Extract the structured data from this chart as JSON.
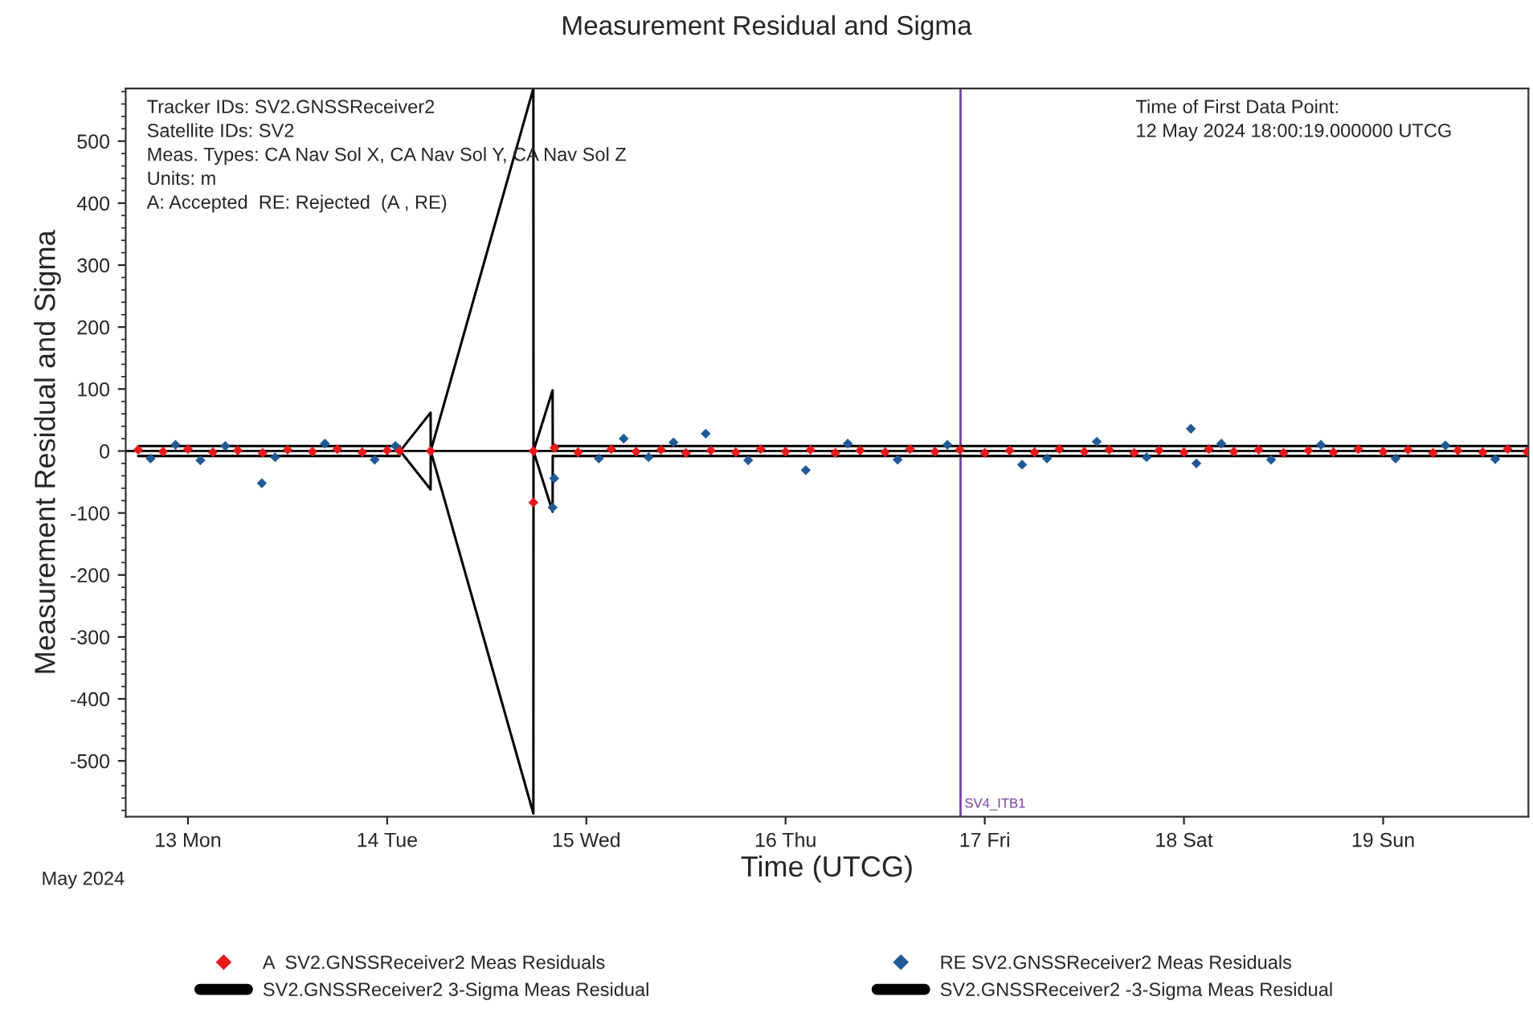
{
  "chart_data": {
    "type": "scatter",
    "title": "Measurement Residual and Sigma",
    "xlabel": "Time (UTCG)",
    "ylabel": "Measurement Residual and Sigma",
    "xlim": [
      "2024-05-12T16:30",
      "2024-05-19T17:30"
    ],
    "xticks": [
      {
        "value": "2024-05-13",
        "label": "13 Mon"
      },
      {
        "value": "2024-05-14",
        "label": "14 Tue"
      },
      {
        "value": "2024-05-15",
        "label": "15 Wed"
      },
      {
        "value": "2024-05-16",
        "label": "16 Thu"
      },
      {
        "value": "2024-05-17",
        "label": "17 Fri"
      },
      {
        "value": "2024-05-18",
        "label": "18 Sat"
      },
      {
        "value": "2024-05-19",
        "label": "19 Sun"
      }
    ],
    "ylim": [
      -590,
      585
    ],
    "yticks": [
      -500,
      -400,
      -300,
      -200,
      -100,
      0,
      100,
      200,
      300,
      400,
      500
    ],
    "grid": false,
    "legend": "bottom",
    "annotations": [
      "Tracker IDs: SV2.GNSSReceiver2\nSatellite IDs: SV2\nMeas. Types: CA Nav Sol X, CA Nav Sol Y, CA Nav Sol Z\nUnits: m\nA: Accepted  RE: Rejected  (A , RE)",
      "Time of First Data Point:\n12 May 2024 18:00:19.000000 UTCG",
      "May 2024"
    ],
    "ref_lines": [
      {
        "axis": "x",
        "value": "2024-05-16T21:05",
        "label": "SV4_ITB1",
        "color": "#7b3fa0"
      },
      {
        "axis": "y",
        "value": 0,
        "color": "#000000"
      }
    ],
    "series": [
      {
        "name": "A  SV2.GNSSReceiver2 Meas Residuals",
        "marker": "diamond",
        "color": "#e8191c",
        "x": [
          "2024-05-12T18:00",
          "2024-05-12T21:00",
          "2024-05-13T00:00",
          "2024-05-13T03:00",
          "2024-05-13T06:00",
          "2024-05-13T09:00",
          "2024-05-13T12:00",
          "2024-05-13T15:00",
          "2024-05-13T18:00",
          "2024-05-13T21:00",
          "2024-05-14T00:00",
          "2024-05-14T01:30",
          "2024-05-14T05:14",
          "2024-05-14T17:37",
          "2024-05-14T17:37",
          "2024-05-14T20:10",
          "2024-05-14T23:00",
          "2024-05-15T03:00",
          "2024-05-15T06:00",
          "2024-05-15T09:00",
          "2024-05-15T12:00",
          "2024-05-15T15:00",
          "2024-05-15T18:00",
          "2024-05-15T21:00",
          "2024-05-16T00:00",
          "2024-05-16T03:00",
          "2024-05-16T06:00",
          "2024-05-16T09:00",
          "2024-05-16T12:00",
          "2024-05-16T15:00",
          "2024-05-16T18:00",
          "2024-05-16T21:00",
          "2024-05-17T00:00",
          "2024-05-17T03:00",
          "2024-05-17T06:00",
          "2024-05-17T09:00",
          "2024-05-17T12:00",
          "2024-05-17T15:00",
          "2024-05-17T18:00",
          "2024-05-17T21:00",
          "2024-05-18T00:00",
          "2024-05-18T03:00",
          "2024-05-18T06:00",
          "2024-05-18T09:00",
          "2024-05-18T12:00",
          "2024-05-18T15:00",
          "2024-05-18T18:00",
          "2024-05-18T21:00",
          "2024-05-19T00:00",
          "2024-05-19T03:00",
          "2024-05-19T06:00",
          "2024-05-19T09:00",
          "2024-05-19T12:00",
          "2024-05-19T15:00",
          "2024-05-19T17:20"
        ],
        "values": [
          2,
          -1,
          3,
          -2,
          1,
          -3,
          2,
          -1,
          3,
          -2,
          1,
          0,
          0,
          0,
          -83,
          5,
          -2,
          3,
          -1,
          2,
          -3,
          1,
          -2,
          3,
          -1,
          2,
          -3,
          1,
          -2,
          3,
          -1,
          2,
          -3,
          1,
          -2,
          3,
          -1,
          2,
          -3,
          1,
          -2,
          3,
          -1,
          2,
          -3,
          1,
          -2,
          3,
          -1,
          2,
          -3,
          1,
          -2,
          3,
          -1
        ]
      },
      {
        "name": "RE SV2.GNSSReceiver2 Meas Residuals",
        "marker": "diamond",
        "color": "#1f5a96",
        "x": [
          "2024-05-12T19:30",
          "2024-05-12T22:30",
          "2024-05-13T01:30",
          "2024-05-13T04:30",
          "2024-05-13T08:54",
          "2024-05-13T10:30",
          "2024-05-13T16:30",
          "2024-05-13T22:30",
          "2024-05-14T01:00",
          "2024-05-14T19:56",
          "2024-05-14T20:08",
          "2024-05-15T01:30",
          "2024-05-15T04:30",
          "2024-05-15T07:30",
          "2024-05-15T10:30",
          "2024-05-15T14:23",
          "2024-05-15T19:30",
          "2024-05-16T02:26",
          "2024-05-16T07:30",
          "2024-05-16T13:30",
          "2024-05-16T19:30",
          "2024-05-17T04:30",
          "2024-05-17T07:30",
          "2024-05-17T13:30",
          "2024-05-17T19:30",
          "2024-05-18T00:50",
          "2024-05-18T01:30",
          "2024-05-18T04:30",
          "2024-05-18T10:30",
          "2024-05-18T16:30",
          "2024-05-19T01:30",
          "2024-05-19T07:30",
          "2024-05-19T13:30"
        ],
        "values": [
          -12,
          10,
          -15,
          8,
          -52,
          -10,
          12,
          -14,
          8,
          -91,
          -44,
          -12,
          20,
          -10,
          14,
          28,
          -15,
          -31,
          12,
          -14,
          10,
          -22,
          -12,
          15,
          -10,
          36,
          -20,
          12,
          -14,
          10,
          -12,
          9,
          -13
        ]
      },
      {
        "name": "SV2.GNSSReceiver2 3-Sigma Meas Residual",
        "type": "line",
        "color": "#000000",
        "x": [
          "2024-05-12T18:00",
          "2024-05-14T01:30",
          "2024-05-14T01:34",
          "2024-05-14T05:14",
          "2024-05-14T05:15",
          "2024-05-14T17:37",
          "2024-05-14T17:38",
          "2024-05-14T19:56",
          "2024-05-14T19:57",
          "2024-05-19T17:30"
        ],
        "values": [
          8,
          8,
          0,
          62,
          0,
          585,
          0,
          98,
          8,
          8
        ]
      },
      {
        "name": "SV2.GNSSReceiver2 -3-Sigma Meas Residual",
        "type": "line",
        "color": "#000000",
        "x": [
          "2024-05-12T18:00",
          "2024-05-14T01:30",
          "2024-05-14T01:34",
          "2024-05-14T05:14",
          "2024-05-14T05:15",
          "2024-05-14T17:37",
          "2024-05-14T17:38",
          "2024-05-14T19:56",
          "2024-05-14T19:57",
          "2024-05-19T17:30"
        ],
        "values": [
          -8,
          -8,
          0,
          -62,
          0,
          -585,
          0,
          -98,
          -8,
          -8
        ]
      }
    ]
  }
}
